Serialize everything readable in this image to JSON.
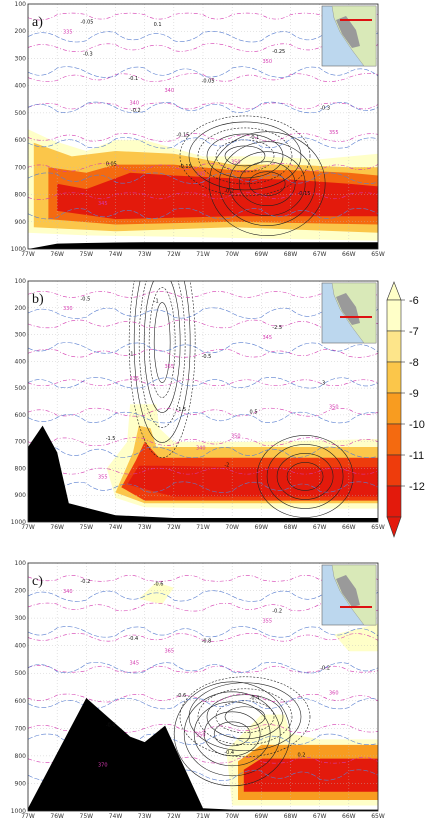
{
  "chart_data": [
    {
      "panel": "a)",
      "type": "heatmap",
      "x_ticks": [
        "77W",
        "76W",
        "75W",
        "74W",
        "73W",
        "72W",
        "71W",
        "70W",
        "69W",
        "68W",
        "67W",
        "66W",
        "65W"
      ],
      "y_ticks": [
        "100",
        "200",
        "300",
        "400",
        "500",
        "600",
        "700",
        "800",
        "900",
        "1000"
      ],
      "ylim": [
        1000,
        100
      ],
      "grid": true,
      "terrain": [
        [
          77,
          1000
        ],
        [
          76,
          980
        ],
        [
          75,
          978
        ],
        [
          74,
          976
        ],
        [
          73,
          975
        ],
        [
          72,
          975
        ],
        [
          71,
          975
        ],
        [
          70,
          975
        ],
        [
          69,
          975
        ],
        [
          68,
          975
        ],
        [
          67,
          975
        ],
        [
          66,
          975
        ],
        [
          65,
          975
        ]
      ],
      "shading": [
        {
          "level": 6,
          "poly": [
            [
              77,
              560
            ],
            [
              76.2,
              600
            ],
            [
              75,
              640
            ],
            [
              74,
              600
            ],
            [
              73,
              600
            ],
            [
              71,
              660
            ],
            [
              69,
              660
            ],
            [
              67,
              670
            ],
            [
              65,
              650
            ],
            [
              65,
              970
            ],
            [
              72,
              955
            ],
            [
              75,
              950
            ],
            [
              77,
              940
            ]
          ]
        },
        {
          "level": 8,
          "poly": [
            [
              76.8,
              610
            ],
            [
              75.5,
              660
            ],
            [
              74,
              640
            ],
            [
              72,
              650
            ],
            [
              70,
              690
            ],
            [
              68,
              690
            ],
            [
              66,
              700
            ],
            [
              65,
              700
            ],
            [
              65,
              940
            ],
            [
              70,
              920
            ],
            [
              74,
              935
            ],
            [
              76.8,
              920
            ]
          ]
        },
        {
          "level": 10,
          "poly": [
            [
              76.3,
              700
            ],
            [
              75,
              720
            ],
            [
              74,
              690
            ],
            [
              72,
              690
            ],
            [
              70,
              710
            ],
            [
              68,
              710
            ],
            [
              66,
              720
            ],
            [
              65,
              730
            ],
            [
              65,
              910
            ],
            [
              70,
              900
            ],
            [
              74,
              910
            ],
            [
              76.3,
              890
            ]
          ]
        },
        {
          "level": 12,
          "poly": [
            [
              76,
              760
            ],
            [
              75,
              780
            ],
            [
              73.5,
              720
            ],
            [
              72,
              730
            ],
            [
              70,
              740
            ],
            [
              68,
              745
            ],
            [
              66,
              760
            ],
            [
              65,
              770
            ],
            [
              65,
              880
            ],
            [
              70,
              880
            ],
            [
              74,
              890
            ],
            [
              76,
              860
            ]
          ]
        }
      ],
      "contour_labels": [
        "-0.05",
        "-0.1",
        "-0.15",
        "-0.2",
        "-0.25",
        "-0.3",
        "0.05",
        "0.1",
        "-0.05",
        "-0.1",
        "-0.15",
        "-0.3",
        "-0.2",
        "-0.15"
      ],
      "theta_labels": [
        "335",
        "340",
        "345",
        "350",
        "355",
        "345",
        "340",
        "350"
      ],
      "inset": "Peru map with red cross-section line"
    },
    {
      "panel": "b)",
      "type": "heatmap",
      "x_ticks": [
        "77W",
        "76W",
        "75W",
        "74W",
        "73W",
        "72W",
        "71W",
        "70W",
        "69W",
        "68W",
        "67W",
        "66W",
        "65W"
      ],
      "y_ticks": [
        "100",
        "200",
        "300",
        "400",
        "500",
        "600",
        "700",
        "800",
        "900",
        "1000"
      ],
      "ylim": [
        1000,
        100
      ],
      "grid": true,
      "terrain": [
        [
          77,
          720
        ],
        [
          76.5,
          640
        ],
        [
          76,
          740
        ],
        [
          75.6,
          930
        ],
        [
          74,
          975
        ],
        [
          73,
          980
        ],
        [
          72,
          985
        ],
        [
          70,
          985
        ],
        [
          65,
          985
        ]
      ],
      "shading": [
        {
          "level": 6,
          "poly": [
            [
              73.6,
              700
            ],
            [
              73.5,
              560
            ],
            [
              72.6,
              560
            ],
            [
              72.5,
              650
            ],
            [
              72,
              700
            ],
            [
              69,
              700
            ],
            [
              65,
              690
            ],
            [
              65,
              950
            ],
            [
              70,
              950
            ],
            [
              73,
              945
            ],
            [
              74,
              910
            ],
            [
              74.3,
              800
            ]
          ]
        },
        {
          "level": 8,
          "poly": [
            [
              73.4,
              740
            ],
            [
              73.2,
              640
            ],
            [
              72.8,
              650
            ],
            [
              72.6,
              720
            ],
            [
              69,
              720
            ],
            [
              65,
              720
            ],
            [
              65,
              930
            ],
            [
              73,
              930
            ],
            [
              74,
              890
            ]
          ]
        },
        {
          "level": 11,
          "poly": [
            [
              73.3,
              770
            ],
            [
              73,
              700
            ],
            [
              72.5,
              760
            ],
            [
              70,
              760
            ],
            [
              67,
              760
            ],
            [
              65,
              760
            ],
            [
              65,
              920
            ],
            [
              73,
              920
            ],
            [
              73.8,
              870
            ]
          ]
        },
        {
          "level": 12,
          "poly": [
            [
              73.2,
              790
            ],
            [
              72.4,
              790
            ],
            [
              70,
              795
            ],
            [
              65,
              795
            ],
            [
              65,
              905
            ],
            [
              72,
              905
            ],
            [
              73.6,
              860
            ]
          ]
        }
      ],
      "contour_labels": [
        "-0.5",
        "-1",
        "-1.5",
        "-2",
        "-2.5",
        "-3",
        "-1.5",
        "-1",
        "-0.5",
        "0.5"
      ],
      "theta_labels": [
        "330",
        "335",
        "340",
        "345",
        "350",
        "355",
        "355",
        "350"
      ],
      "inset": "Peru map with red cross-section line"
    },
    {
      "panel": "c)",
      "type": "heatmap",
      "x_ticks": [
        "77W",
        "76W",
        "75W",
        "74W",
        "73W",
        "72W",
        "71W",
        "70W",
        "69W",
        "68W",
        "67W",
        "66W",
        "65W"
      ],
      "y_ticks": [
        "100",
        "200",
        "300",
        "400",
        "500",
        "600",
        "700",
        "800",
        "900",
        "1000"
      ],
      "ylim": [
        1000,
        100
      ],
      "grid": true,
      "terrain": [
        [
          77,
          990
        ],
        [
          75,
          590
        ],
        [
          73.5,
          730
        ],
        [
          73,
          750
        ],
        [
          72.3,
          690
        ],
        [
          71,
          990
        ],
        [
          70,
          995
        ],
        [
          65,
          995
        ]
      ],
      "shading": [
        {
          "level": 6,
          "poly": [
            [
              73.2,
              230
            ],
            [
              72.6,
              170
            ],
            [
              72,
              190
            ],
            [
              72.4,
              250
            ]
          ]
        },
        {
          "level": 6,
          "poly": [
            [
              66.5,
              360
            ],
            [
              65,
              320
            ],
            [
              65,
              420
            ],
            [
              66,
              420
            ]
          ]
        },
        {
          "level": 6,
          "poly": [
            [
              70.2,
              780
            ],
            [
              69,
              650
            ],
            [
              68.2,
              650
            ],
            [
              68,
              720
            ],
            [
              67,
              740
            ],
            [
              65,
              740
            ],
            [
              65,
              980
            ],
            [
              70,
              980
            ]
          ]
        },
        {
          "level": 9,
          "poly": [
            [
              69.8,
              820
            ],
            [
              69,
              760
            ],
            [
              67,
              760
            ],
            [
              65,
              760
            ],
            [
              65,
              960
            ],
            [
              69.8,
              960
            ]
          ]
        },
        {
          "level": 12,
          "poly": [
            [
              69.6,
              850
            ],
            [
              69,
              810
            ],
            [
              66,
              810
            ],
            [
              65,
              810
            ],
            [
              65,
              930
            ],
            [
              69.6,
              930
            ]
          ]
        }
      ],
      "contour_labels": [
        "-0.2",
        "-0.4",
        "-0.6",
        "-0.4",
        "-0.2",
        "-0.2",
        "-0.4",
        "-0.6",
        "-0.8",
        "-0.4",
        "0.2"
      ],
      "theta_labels": [
        "340",
        "345",
        "350",
        "355",
        "360",
        "370",
        "365"
      ],
      "inset": "Peru map with red cross-section line"
    }
  ],
  "colorbar": {
    "labels": [
      "-6",
      "-7",
      "-8",
      "-9",
      "-10",
      "-11",
      "-12"
    ],
    "colors": [
      "#ffffc8",
      "#fde58a",
      "#fbc64a",
      "#f89c20",
      "#f46a10",
      "#ee3c0c",
      "#e31a0c"
    ]
  },
  "colors": {
    "terrain": "#000000",
    "contour_black": "#222222",
    "contour_blue": "#5a7fd0",
    "contour_magenta": "#d43ab0"
  }
}
